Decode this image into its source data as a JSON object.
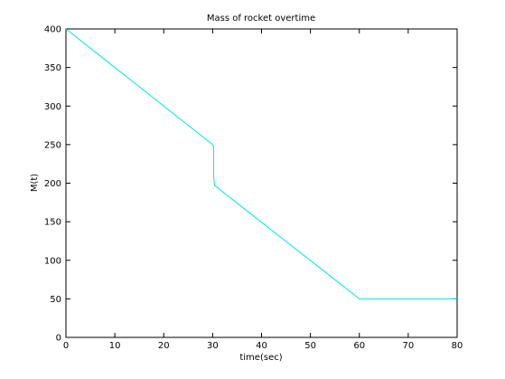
{
  "chart_data": {
    "type": "line",
    "title": "Mass of rocket overtime",
    "xlabel": "time(sec)",
    "ylabel": "M(t)",
    "xlim": [
      0,
      80
    ],
    "ylim": [
      0,
      400
    ],
    "xticks": [
      0,
      10,
      20,
      30,
      40,
      50,
      60,
      70,
      80
    ],
    "yticks": [
      0,
      50,
      100,
      150,
      200,
      250,
      300,
      350,
      400
    ],
    "grid": false,
    "legend": "none",
    "series": [
      {
        "color": "#00e5e5",
        "x": [
          0,
          30,
          30.2,
          30.2,
          30.4,
          60,
          80
        ],
        "y": [
          400,
          250,
          248,
          210,
          197,
          50,
          50
        ]
      }
    ]
  }
}
